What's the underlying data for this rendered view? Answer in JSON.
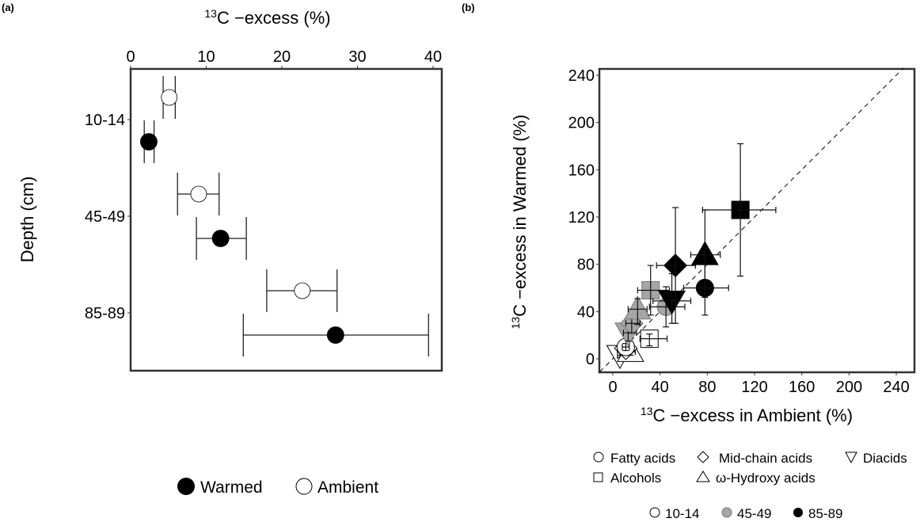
{
  "figure": {
    "panel_a_label": "(a)",
    "panel_b_label": "(b)"
  },
  "chart_data": [
    {
      "id": "a",
      "type": "scatter",
      "title": "",
      "xlabel_sup": "13",
      "xlabel": "C −excess (%)",
      "ylabel": "Depth (cm)",
      "xlim": [
        0,
        42
      ],
      "xticks": [
        0,
        10,
        20,
        30,
        40
      ],
      "xtick_labels": [
        "0",
        "10",
        "20",
        "30",
        "40"
      ],
      "x_axis_position": "top",
      "categories": [
        "10-14",
        "45-49",
        "85-89"
      ],
      "grid": false,
      "legend": {
        "placement": "bottom",
        "entries": [
          {
            "label": "Warmed",
            "fill": "#000000"
          },
          {
            "label": "Ambient",
            "fill": "#ffffff"
          }
        ]
      },
      "series": [
        {
          "name": "Ambient",
          "fill": "#ffffff",
          "points": [
            {
              "depth": "10-14",
              "x": 5.1,
              "xmin": 4.3,
              "xmax": 5.9
            },
            {
              "depth": "45-49",
              "x": 9.0,
              "xmin": 6.2,
              "xmax": 11.7
            },
            {
              "depth": "85-89",
              "x": 22.7,
              "xmin": 18.0,
              "xmax": 27.3
            }
          ]
        },
        {
          "name": "Warmed",
          "fill": "#000000",
          "points": [
            {
              "depth": "10-14",
              "x": 2.4,
              "xmin": 1.8,
              "xmax": 3.1
            },
            {
              "depth": "45-49",
              "x": 11.9,
              "xmin": 8.7,
              "xmax": 15.3
            },
            {
              "depth": "85-89",
              "x": 27.1,
              "xmin": 14.9,
              "xmax": 39.4
            }
          ]
        }
      ]
    },
    {
      "id": "b",
      "type": "scatter",
      "title": "",
      "xlabel_sup": "13",
      "xlabel": "C −excess in Ambient (%)",
      "ylabel_sup": "13",
      "ylabel": "C −excess in Warmed (%)",
      "xlim": [
        -11,
        255
      ],
      "ylim": [
        -11,
        246
      ],
      "xticks": [
        0,
        40,
        80,
        120,
        160,
        200,
        240
      ],
      "yticks": [
        0,
        40,
        80,
        120,
        160,
        200,
        240
      ],
      "tick_labels": [
        "0",
        "40",
        "80",
        "120",
        "160",
        "200",
        "240"
      ],
      "reference_line": "1:1 dashed",
      "grid": false,
      "legend": {
        "placement": "bottom",
        "compound_classes": [
          {
            "label": "Fatty acids",
            "shape": "circle"
          },
          {
            "label": "Mid-chain acids",
            "shape": "diamond"
          },
          {
            "label": "Diacids",
            "shape": "triangle-down"
          },
          {
            "label": "Alcohols",
            "shape": "square"
          },
          {
            "label": "ω-Hydroxy acids",
            "shape": "triangle-up"
          }
        ],
        "depths": [
          {
            "label": "10-14",
            "fill": "#ffffff"
          },
          {
            "label": "45-49",
            "fill": "#a6a6a6"
          },
          {
            "label": "85-89",
            "fill": "#000000"
          }
        ]
      },
      "points": [
        {
          "class": "Diacids",
          "shape": "triangle-down",
          "depth": "10-14",
          "fill": "#ffffff",
          "x": 6,
          "y": 3,
          "xerr": [
            4,
            9
          ],
          "yerr": [
            1,
            6
          ]
        },
        {
          "class": "ω-Hydroxy acids",
          "shape": "triangle-up",
          "depth": "10-14",
          "fill": "#ffffff",
          "x": 15,
          "y": 6,
          "xerr": [
            11,
            19
          ],
          "yerr": [
            3,
            9
          ]
        },
        {
          "class": "Mid-chain acids",
          "shape": "diamond",
          "depth": "10-14",
          "fill": "#ffffff",
          "x": 11,
          "y": 9,
          "xerr": [
            8,
            14
          ],
          "yerr": [
            6,
            12
          ]
        },
        {
          "class": "Fatty acids",
          "shape": "circle",
          "depth": "10-14",
          "fill": "#ffffff",
          "x": 11,
          "y": 10,
          "xerr": [
            8,
            14
          ],
          "yerr": [
            7,
            13
          ]
        },
        {
          "class": "Alcohols",
          "shape": "square",
          "depth": "10-14",
          "fill": "#ffffff",
          "x": 31,
          "y": 17,
          "xerr": [
            23,
            46
          ],
          "yerr": [
            11,
            21
          ]
        },
        {
          "class": "Diacids",
          "shape": "triangle-down",
          "depth": "45-49",
          "fill": "#a6a6a6",
          "x": 13,
          "y": 22,
          "xerr": [
            9,
            20
          ],
          "yerr": [
            15,
            29
          ]
        },
        {
          "class": "Mid-chain acids",
          "shape": "diamond",
          "depth": "45-49",
          "fill": "#a6a6a6",
          "x": 16,
          "y": 30,
          "xerr": [
            11,
            23
          ],
          "yerr": [
            22,
            37
          ]
        },
        {
          "class": "ω-Hydroxy acids",
          "shape": "triangle-up",
          "depth": "45-49",
          "fill": "#a6a6a6",
          "x": 21,
          "y": 42,
          "xerr": [
            13,
            29
          ],
          "yerr": [
            29,
            51
          ]
        },
        {
          "class": "Fatty acids",
          "shape": "circle",
          "depth": "45-49",
          "fill": "#a6a6a6",
          "x": 45,
          "y": 44,
          "xerr": [
            31,
            61
          ],
          "yerr": [
            27,
            61
          ]
        },
        {
          "class": "Alcohols",
          "shape": "square",
          "depth": "45-49",
          "fill": "#a6a6a6",
          "x": 32,
          "y": 58,
          "xerr": [
            21,
            48
          ],
          "yerr": [
            37,
            79
          ]
        },
        {
          "class": "Diacids",
          "shape": "triangle-down",
          "depth": "85-89",
          "fill": "#000000",
          "x": 50,
          "y": 49,
          "xerr": [
            34,
            66
          ],
          "yerr": [
            30,
            72
          ]
        },
        {
          "class": "Fatty acids",
          "shape": "circle",
          "depth": "85-89",
          "fill": "#000000",
          "x": 78,
          "y": 60,
          "xerr": [
            60,
            98
          ],
          "yerr": [
            37,
            84
          ]
        },
        {
          "class": "Mid-chain acids",
          "shape": "diamond",
          "depth": "85-89",
          "fill": "#000000",
          "x": 53,
          "y": 79,
          "xerr": [
            37,
            70
          ],
          "yerr": [
            30,
            128
          ]
        },
        {
          "class": "ω-Hydroxy acids",
          "shape": "triangle-up",
          "depth": "85-89",
          "fill": "#000000",
          "x": 78,
          "y": 88,
          "xerr": [
            66,
            91
          ],
          "yerr": [
            52,
            126
          ]
        },
        {
          "class": "Alcohols",
          "shape": "square",
          "depth": "85-89",
          "fill": "#000000",
          "x": 108,
          "y": 126,
          "xerr": [
            76,
            138
          ],
          "yerr": [
            70,
            182
          ]
        }
      ]
    }
  ]
}
